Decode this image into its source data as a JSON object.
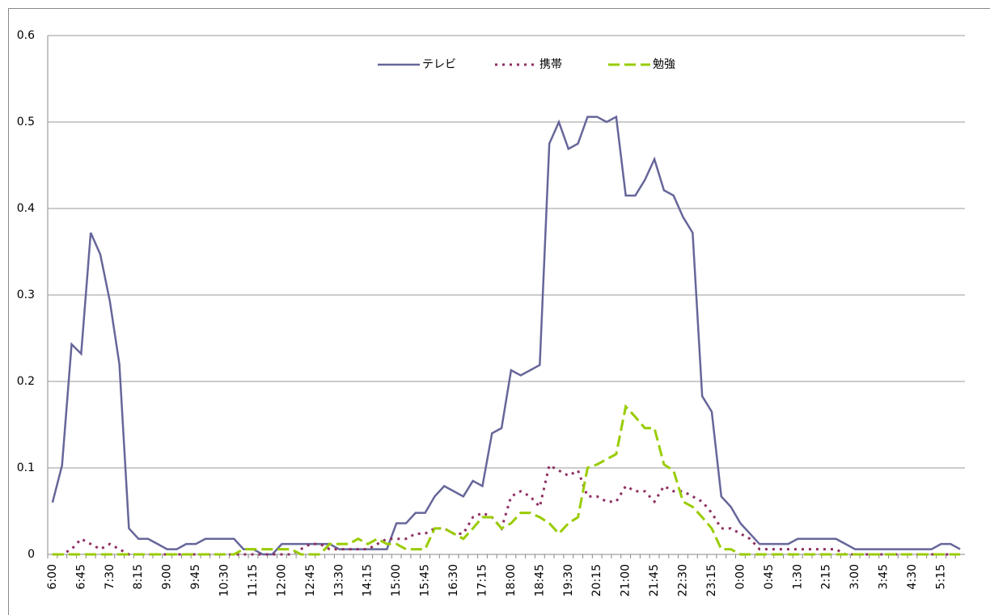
{
  "chart_data": {
    "type": "line",
    "categories": [
      "6:00",
      null,
      null,
      "6:45",
      null,
      null,
      "7:30",
      null,
      null,
      "8:15",
      null,
      null,
      "9:00",
      null,
      null,
      "9:45",
      null,
      null,
      "10:30",
      null,
      null,
      "11:15",
      null,
      null,
      "12:00",
      null,
      null,
      "12:45",
      null,
      null,
      "13:30",
      null,
      null,
      "14:15",
      null,
      null,
      "15:00",
      null,
      null,
      "15:45",
      null,
      null,
      "16:30",
      null,
      null,
      "17:15",
      null,
      null,
      "18:00",
      null,
      null,
      "18:45",
      null,
      null,
      "19:30",
      null,
      null,
      "20:15",
      null,
      null,
      "21:00",
      null,
      null,
      "21:45",
      null,
      null,
      "22:30",
      null,
      null,
      "23:15",
      null,
      null,
      "0:00",
      null,
      null,
      "0:45",
      null,
      null,
      "1:30",
      null,
      null,
      "2:15",
      null,
      null,
      "3:00",
      null,
      null,
      "3:45",
      null,
      null,
      "4:30",
      null,
      null,
      "5:15",
      null,
      null
    ],
    "series": [
      {
        "name": "テレビ",
        "color": "#66669a",
        "style": "solid",
        "values": [
          0.06,
          0.103,
          0.243,
          0.232,
          0.372,
          0.347,
          0.293,
          0.22,
          0.03,
          0.018,
          0.018,
          0.012,
          0.006,
          0.006,
          0.012,
          0.012,
          0.018,
          0.018,
          0.018,
          0.018,
          0.006,
          0.006,
          0,
          0,
          0.012,
          0.012,
          0.012,
          0.012,
          0.012,
          0.012,
          0.006,
          0.006,
          0.006,
          0.006,
          0.006,
          0.006,
          0.036,
          0.036,
          0.048,
          0.048,
          0.067,
          0.079,
          0.073,
          0.067,
          0.085,
          0.079,
          0.14,
          0.146,
          0.213,
          0.207,
          0.213,
          0.219,
          0.475,
          0.5,
          0.469,
          0.475,
          0.506,
          0.506,
          0.5,
          0.506,
          0.415,
          0.415,
          0.433,
          0.457,
          0.421,
          0.415,
          0.39,
          0.372,
          0.183,
          0.165,
          0.067,
          0.055,
          0.036,
          0.024,
          0.012,
          0.012,
          0.012,
          0.012,
          0.018,
          0.018,
          0.018,
          0.018,
          0.018,
          0.012,
          0.006,
          0.006,
          0.006,
          0.006,
          0.006,
          0.006,
          0.006,
          0.006,
          0.006,
          0.012,
          0.012,
          0.006
        ]
      },
      {
        "name": "携帯",
        "color": "#8e2f60",
        "style": "dotted",
        "values": [
          0,
          0,
          0.006,
          0.018,
          0.012,
          0.006,
          0.012,
          0.006,
          0,
          0,
          0,
          0,
          0,
          0,
          0,
          0,
          0,
          0,
          0,
          0,
          0,
          0,
          0,
          0,
          0,
          0,
          0.006,
          0.012,
          0.012,
          0.006,
          0.006,
          0.006,
          0.006,
          0.006,
          0.012,
          0.018,
          0.018,
          0.018,
          0.024,
          0.024,
          0.03,
          0.03,
          0.024,
          0.024,
          0.043,
          0.048,
          0.043,
          0.03,
          0.067,
          0.073,
          0.067,
          0.055,
          0.103,
          0.097,
          0.091,
          0.097,
          0.067,
          0.067,
          0.061,
          0.061,
          0.079,
          0.073,
          0.073,
          0.061,
          0.079,
          0.073,
          0.073,
          0.067,
          0.061,
          0.048,
          0.03,
          0.03,
          0.024,
          0.018,
          0.006,
          0.006,
          0.006,
          0.006,
          0.006,
          0.006,
          0.006,
          0.006,
          0.006,
          0,
          0,
          0,
          0,
          0,
          0,
          0,
          0,
          0,
          0,
          0,
          0,
          0
        ]
      },
      {
        "name": "勉強",
        "color": "#99cc00",
        "style": "dashed",
        "values": [
          0,
          0,
          0,
          0,
          0,
          0,
          0,
          0,
          0,
          0,
          0,
          0,
          0,
          0,
          0,
          0,
          0,
          0,
          0,
          0,
          0.006,
          0.006,
          0.006,
          0.006,
          0.006,
          0.006,
          0,
          0,
          0,
          0.012,
          0.012,
          0.012,
          0.018,
          0.012,
          0.018,
          0.012,
          0.012,
          0.006,
          0.006,
          0.006,
          0.03,
          0.03,
          0.024,
          0.018,
          0.03,
          0.043,
          0.043,
          0.03,
          0.036,
          0.048,
          0.048,
          0.043,
          0.036,
          0.024,
          0.036,
          0.043,
          0.1,
          0.104,
          0.11,
          0.116,
          0.171,
          0.159,
          0.146,
          0.146,
          0.104,
          0.097,
          0.061,
          0.055,
          0.043,
          0.03,
          0.006,
          0.006,
          0,
          0,
          0,
          0,
          0,
          0,
          0,
          0,
          0,
          0,
          0,
          0,
          0,
          0,
          0,
          0,
          0,
          0,
          0,
          0,
          0,
          0,
          0,
          0
        ]
      }
    ],
    "ylim": [
      0,
      0.6
    ],
    "yticks": [
      0,
      0.1,
      0.2,
      0.3,
      0.4,
      0.5,
      0.6
    ],
    "grid": true,
    "legend": "top"
  }
}
